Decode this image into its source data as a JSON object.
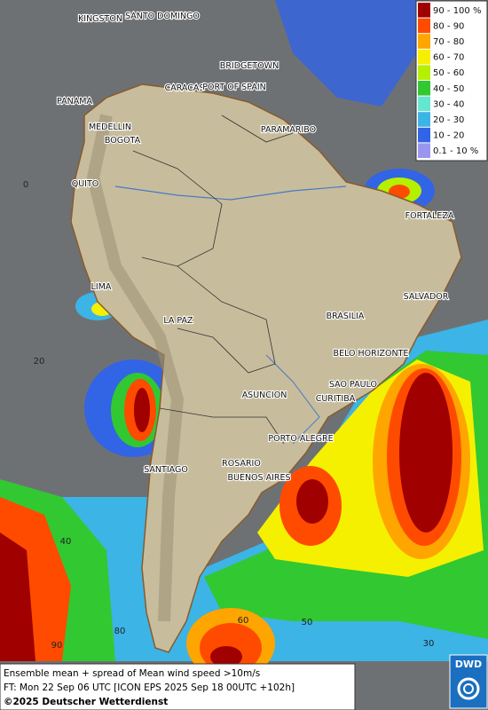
{
  "map": {
    "cities": [
      "KINGSTON",
      "SANTO DOMINGO",
      "BRIDGETOWN",
      "CARACAS",
      "PORT OF SPAIN",
      "PANAMA",
      "MEDELLIN",
      "BOGOTA",
      "PARAMARIBO",
      "QUITO",
      "FORTALEZA",
      "LIMA",
      "SALVADOR",
      "BRASILIA",
      "LA PAZ",
      "BELO HORIZONTE",
      "SAO PAULO",
      "CURITIBA",
      "ASUNCION",
      "PORTO ALEGRE",
      "ROSARIO",
      "SANTIAGO",
      "BUENOS AIRES"
    ],
    "grid_labels": [
      "0",
      "20",
      "40",
      "90",
      "80",
      "60",
      "50",
      "30"
    ]
  },
  "legend": {
    "entries": [
      {
        "label": "90 - 100 %",
        "color": "#a00000"
      },
      {
        "label": "80 - 90",
        "color": "#ff4b00"
      },
      {
        "label": "70 - 80",
        "color": "#ffa500"
      },
      {
        "label": "60 - 70",
        "color": "#f5f000"
      },
      {
        "label": "50 - 60",
        "color": "#b4f000"
      },
      {
        "label": "40 - 50",
        "color": "#32c832"
      },
      {
        "label": "30 - 40",
        "color": "#64e6d2"
      },
      {
        "label": "20 - 30",
        "color": "#3cb4e6"
      },
      {
        "label": "10 - 20",
        "color": "#3264e6"
      },
      {
        "label": "0.1 - 10 %",
        "color": "#9a96f0"
      }
    ]
  },
  "footer": {
    "line1": "Ensemble mean + spread of Mean wind speed >10m/s",
    "line2": "FT: Mon 22 Sep 06 UTC [ICON EPS 2025 Sep 18 00UTC +102h]",
    "copyright": "©2025 Deutscher Wetterdienst",
    "logo": "DWD"
  }
}
